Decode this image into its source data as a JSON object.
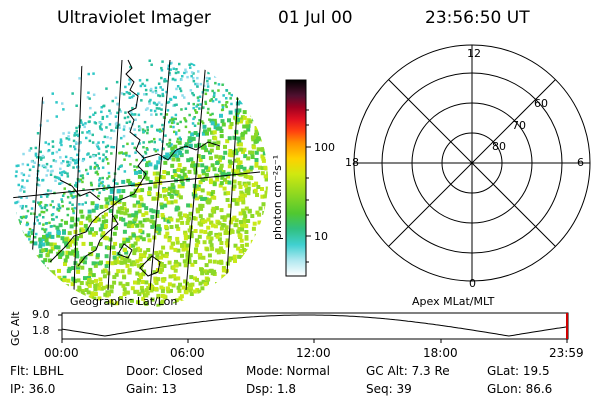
{
  "header": {
    "title": "Ultraviolet Imager",
    "date": "01 Jul 00",
    "time": "23:56:50 UT"
  },
  "colorbar": {
    "unit_label": "photon cm⁻²s⁻¹",
    "ticks": [
      "100",
      "10"
    ],
    "colors": [
      "#000000",
      "#2a1030",
      "#5a1030",
      "#8b0010",
      "#c00010",
      "#e81020",
      "#ff4000",
      "#ff9a00",
      "#ffd000",
      "#d8ec10",
      "#a8e020",
      "#60d030",
      "#28c070",
      "#20c8c0",
      "#a0e0f0",
      "#ffffff"
    ]
  },
  "left_panel": {
    "caption": "Geographic Lat/Lon"
  },
  "right_panel": {
    "caption": "Apex MLat/MLT",
    "mlt_labels": {
      "top": "12",
      "left": "18",
      "right": "6",
      "bottom": "0"
    },
    "lat_labels": [
      "60",
      "70",
      "80"
    ]
  },
  "altitude_plot": {
    "ylabel": "GC Alt",
    "yticks": [
      "9.0",
      "1.8"
    ],
    "xticks": [
      "00:00",
      "06:00",
      "12:00",
      "18:00",
      "23:59"
    ]
  },
  "footer": {
    "row1": [
      "Flt: LBHL",
      "Door: Closed",
      "Mode: Normal",
      "GC Alt: 7.3 Re",
      "GLat:  19.5"
    ],
    "row2": [
      "IP: 36.0",
      "Gain: 13",
      "Dsp:    1.8",
      "Seq: 39",
      "GLon:  86.6"
    ]
  }
}
